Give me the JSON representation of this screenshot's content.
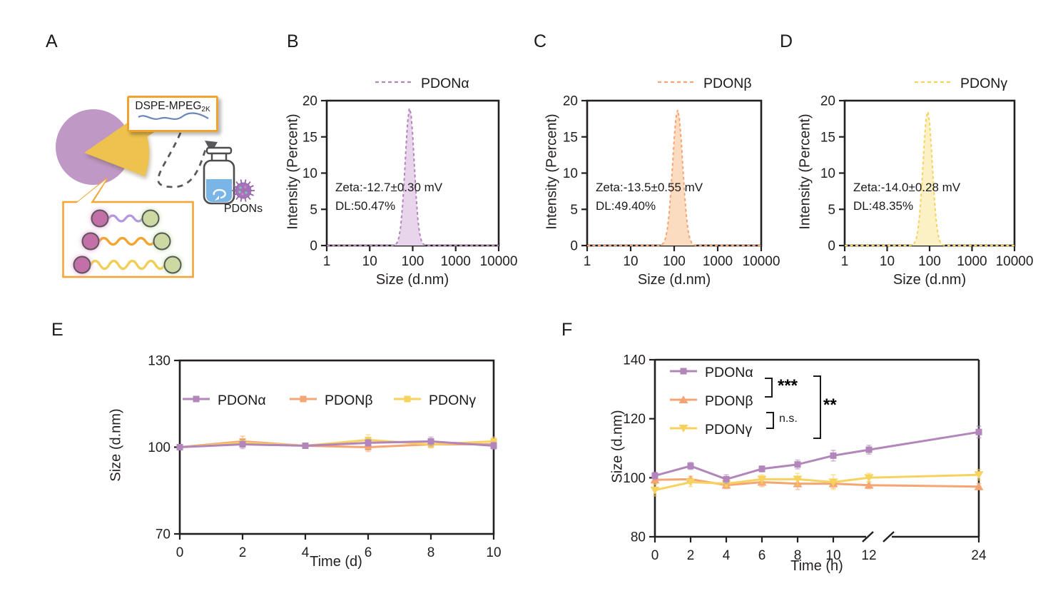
{
  "panels": {
    "a": "A",
    "b": "B",
    "c": "C",
    "d": "D",
    "e": "E",
    "f": "F"
  },
  "panel_a": {
    "callout_label": "DSPE-MPEG",
    "callout_subscript": "2K",
    "product_label": "PDONs"
  },
  "colors": {
    "axis": "#231f20",
    "pdon_alpha": "#b286ba",
    "pdon_beta": "#f5a573",
    "pdon_gamma": "#f7d25f"
  },
  "chart_data": [
    {
      "id": "size-distribution-pdon-alpha",
      "type": "area",
      "x_scale": "log",
      "xlabel": "Size (d.nm)",
      "ylabel": "Intensity (Percent)",
      "x_ticks": [
        1,
        10,
        100,
        1000,
        10000
      ],
      "y_ticks": [
        0,
        5,
        10,
        15,
        20
      ],
      "ylim": [
        0,
        20
      ],
      "legend_position": "top-right",
      "grid": false,
      "series": [
        {
          "name": "PDONα",
          "color": "#b286ba",
          "fill": "#e8d5eb",
          "line_style": "dashed",
          "peak": {
            "center_nm": 85,
            "height_percent": 19,
            "sigma_log": 0.105
          }
        }
      ],
      "annotations": [
        "Zeta:-12.7±0.30 mV",
        "DL:50.47%"
      ]
    },
    {
      "id": "size-distribution-pdon-beta",
      "type": "area",
      "x_scale": "log",
      "xlabel": "Size (d.nm)",
      "ylabel": "Intensity (Percent)",
      "x_ticks": [
        1,
        10,
        100,
        1000,
        10000
      ],
      "y_ticks": [
        0,
        5,
        10,
        15,
        20
      ],
      "ylim": [
        0,
        20
      ],
      "legend_position": "top-right",
      "grid": false,
      "series": [
        {
          "name": "PDONβ",
          "color": "#f5a573",
          "fill": "#fbdcc0",
          "line_style": "dashed",
          "peak": {
            "center_nm": 120,
            "height_percent": 18.7,
            "sigma_log": 0.115
          }
        }
      ],
      "annotations": [
        "Zeta:-13.5±0.55 mV",
        "DL:49.40%"
      ]
    },
    {
      "id": "size-distribution-pdon-gamma",
      "type": "area",
      "x_scale": "log",
      "xlabel": "Size (d.nm)",
      "ylabel": "Intensity (Percent)",
      "x_ticks": [
        1,
        10,
        100,
        1000,
        10000
      ],
      "y_ticks": [
        0,
        5,
        10,
        15,
        20
      ],
      "ylim": [
        0,
        20
      ],
      "legend_position": "top-right",
      "grid": false,
      "series": [
        {
          "name": "PDONγ",
          "color": "#f7d25f",
          "fill": "#fcf1c5",
          "line_style": "dashed",
          "peak": {
            "center_nm": 90,
            "height_percent": 18.5,
            "sigma_log": 0.11
          }
        }
      ],
      "annotations": [
        "Zeta:-14.0±0.28 mV",
        "DL:48.35%"
      ]
    },
    {
      "id": "storage-stability-days",
      "type": "line",
      "xlabel": "Time (d)",
      "ylabel": "Size (d.nm)",
      "x": [
        0,
        2,
        4,
        6,
        8,
        10
      ],
      "x_ticks": [
        0,
        2,
        4,
        6,
        8,
        10
      ],
      "y_ticks": [
        70,
        100,
        130
      ],
      "ylim": [
        70,
        130
      ],
      "legend_position": "inside-top",
      "grid": false,
      "series": [
        {
          "name": "PDONα",
          "marker": "square",
          "color": "#b286ba",
          "values": [
            100,
            101,
            100.5,
            101.5,
            102,
            100.5
          ],
          "errors": [
            0.8,
            1.5,
            0.8,
            1.2,
            1.5,
            1.2
          ]
        },
        {
          "name": "PDONβ",
          "marker": "square",
          "color": "#f5a573",
          "values": [
            100,
            102,
            100.5,
            100,
            101,
            101
          ],
          "errors": [
            0.8,
            1.8,
            0.8,
            1.5,
            1.2,
            1.2
          ]
        },
        {
          "name": "PDONγ",
          "marker": "square",
          "color": "#f7d25f",
          "values": [
            100,
            101.5,
            100.5,
            102.5,
            101,
            102
          ],
          "errors": [
            0.8,
            1.5,
            0.8,
            1.8,
            1.2,
            1.5
          ]
        }
      ]
    },
    {
      "id": "incubation-stability-hours",
      "type": "line",
      "xlabel": "Time (h)",
      "ylabel": "Size (d.nm)",
      "x": [
        0,
        2,
        4,
        6,
        8,
        10,
        12,
        24
      ],
      "x_ticks": [
        0,
        2,
        4,
        6,
        8,
        10,
        12,
        24
      ],
      "axis_break_between": [
        12,
        24
      ],
      "y_ticks": [
        80,
        100,
        120,
        140
      ],
      "ylim": [
        80,
        140
      ],
      "legend_position": "inside-top-left",
      "grid": false,
      "series": [
        {
          "name": "PDONα",
          "marker": "square",
          "color": "#b286ba",
          "values": [
            100.7,
            104,
            99.5,
            103,
            104.5,
            107.5,
            109.5,
            115.5
          ],
          "errors": [
            1.2,
            1.2,
            1.5,
            1,
            1.5,
            1.8,
            1.5,
            2
          ]
        },
        {
          "name": "PDONβ",
          "marker": "triangle-up",
          "color": "#f5a573",
          "values": [
            99.3,
            99.5,
            97.5,
            98.5,
            98,
            98,
            97.5,
            97
          ],
          "errors": [
            1.5,
            1,
            1.2,
            1.5,
            2,
            1.5,
            1.2,
            1
          ]
        },
        {
          "name": "PDONγ",
          "marker": "triangle-down",
          "color": "#f7d25f",
          "values": [
            95.8,
            98.5,
            98,
            99.5,
            99.5,
            98.5,
            100,
            101
          ],
          "errors": [
            2,
            1.5,
            1,
            1.5,
            2,
            2.5,
            1.5,
            1.8
          ]
        }
      ],
      "significance": [
        {
          "between": [
            "PDONα",
            "PDONβ"
          ],
          "label": "***"
        },
        {
          "between": [
            "PDONβ",
            "PDONγ"
          ],
          "label": "n.s."
        },
        {
          "between": [
            "PDONα",
            "PDONγ"
          ],
          "label": "**"
        }
      ]
    }
  ]
}
